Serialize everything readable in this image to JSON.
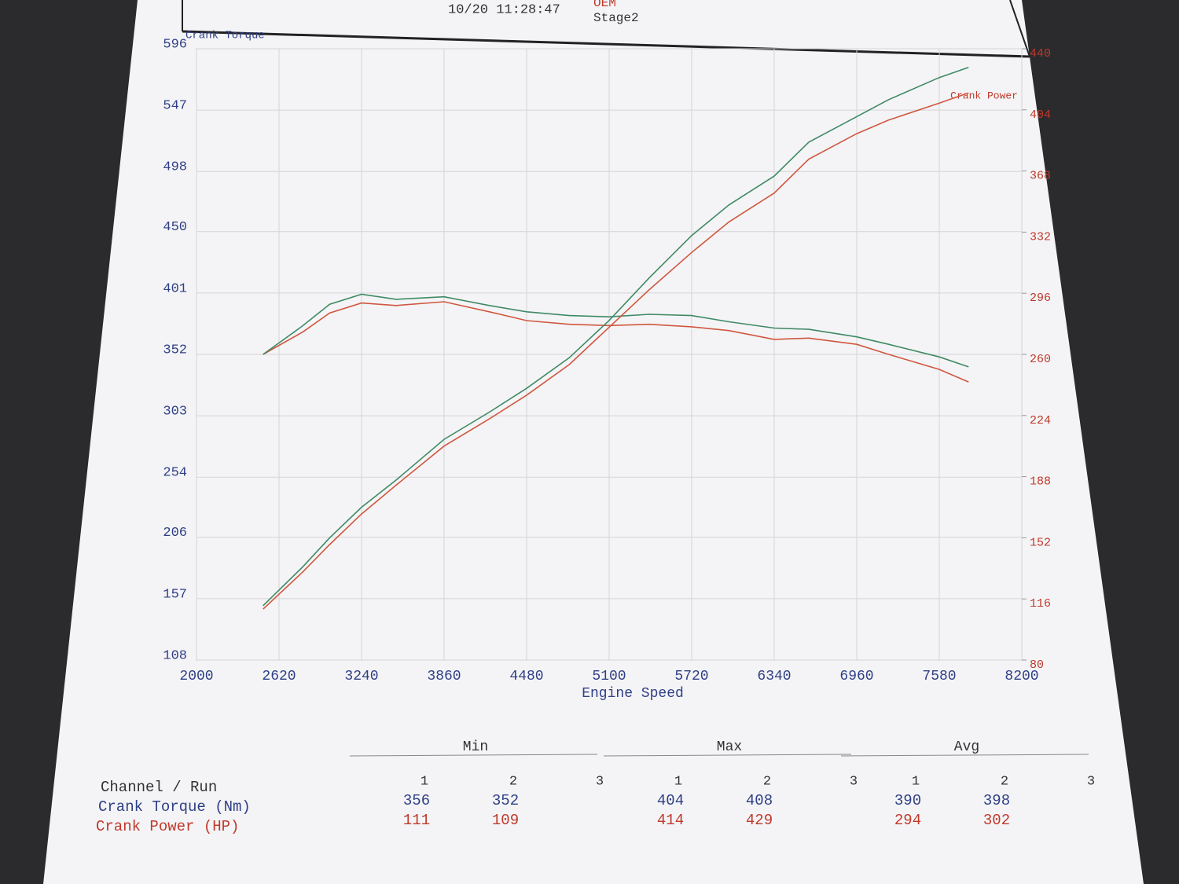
{
  "header": {
    "date": "10/20 11:28:47",
    "runs": [
      "OEM",
      "Stage2"
    ]
  },
  "chart_data": {
    "type": "line",
    "ylabel": "Crank Torque",
    "y2label": "Crank Power",
    "xlabel": "Engine Speed",
    "x": [
      2500,
      2800,
      3000,
      3240,
      3500,
      3860,
      4200,
      4480,
      4800,
      5100,
      5400,
      5720,
      6000,
      6340,
      6600,
      6960,
      7200,
      7580,
      7800
    ],
    "xlim": [
      2000,
      8200
    ],
    "xticks": [
      2000,
      2620,
      3240,
      3860,
      4480,
      5100,
      5720,
      6340,
      6960,
      7580,
      8200
    ],
    "ylim": [
      108,
      596
    ],
    "yticks": [
      108,
      157,
      206,
      254,
      303,
      352,
      401,
      450,
      498,
      547,
      596
    ],
    "y2lim": [
      80,
      440
    ],
    "y2ticks": [
      80,
      116,
      152,
      188,
      224,
      260,
      296,
      332,
      368,
      404,
      440
    ],
    "grid": true,
    "series": [
      {
        "color": "#d0573f",
        "values": [
          352,
          370,
          385,
          393,
          391,
          394,
          386,
          379,
          376,
          375,
          376,
          374,
          371,
          364,
          365,
          360,
          352,
          340,
          330
        ]
      },
      {
        "color": "#3f8a64",
        "values": [
          352,
          375,
          392,
          400,
          396,
          398,
          391,
          386,
          383,
          382,
          384,
          383,
          378,
          373,
          372,
          366,
          360,
          350,
          342
        ]
      },
      {
        "color": "#d0573f",
        "axis": "y2",
        "values": [
          110,
          132,
          148,
          166,
          183,
          206,
          222,
          236,
          254,
          276,
          298,
          320,
          338,
          355,
          375,
          390,
          398,
          408,
          414
        ]
      },
      {
        "color": "#3f8a64",
        "axis": "y2",
        "values": [
          112,
          135,
          152,
          170,
          186,
          210,
          226,
          240,
          258,
          280,
          305,
          330,
          348,
          365,
          385,
          400,
          410,
          423,
          429
        ]
      }
    ]
  },
  "summary": {
    "row_labels": [
      "Channel / Run",
      "Crank Torque (Nm)",
      "Crank Power (HP)"
    ],
    "groups": [
      {
        "label": "Min",
        "runs": [
          1,
          2,
          3
        ],
        "torque": [
          356,
          352
        ],
        "power": [
          111,
          109
        ]
      },
      {
        "label": "Max",
        "runs": [
          1,
          2,
          3
        ],
        "torque": [
          404,
          408
        ],
        "power": [
          414,
          429
        ]
      },
      {
        "label": "Avg",
        "runs": [
          1,
          2,
          3
        ],
        "torque": [
          390,
          398
        ],
        "power": [
          294,
          302
        ]
      }
    ]
  }
}
